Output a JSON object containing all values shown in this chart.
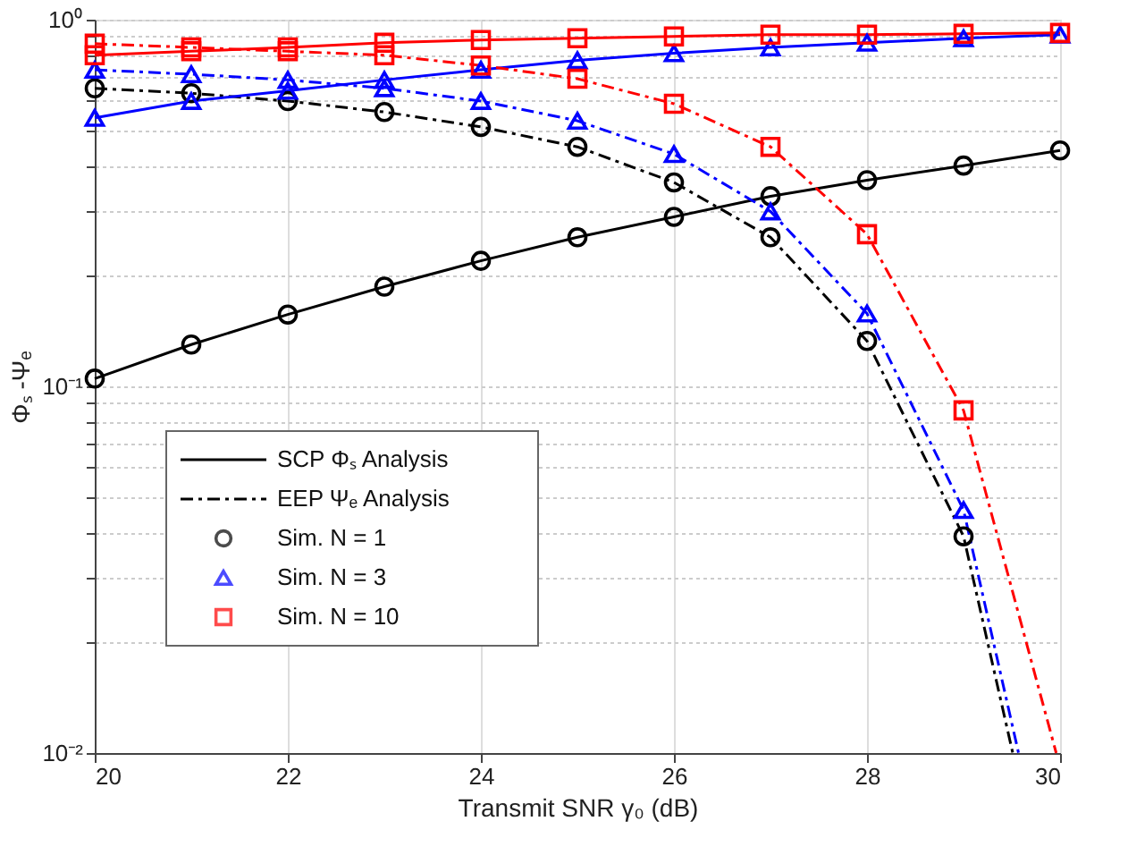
{
  "chart_data": {
    "type": "line",
    "xlabel": "Transmit SNR γ₀ (dB)",
    "ylabel": "Φₛ -Ψₑ",
    "log": "y",
    "grid": true,
    "legend": "bottom left",
    "xlim": [
      20,
      30
    ],
    "xticks": [
      20,
      22,
      24,
      26,
      28,
      30
    ],
    "ylim": [
      0.01,
      1
    ],
    "yticks": [
      {
        "value": 0.01,
        "label": "10⁻²"
      },
      {
        "value": 0.02,
        "label": null
      },
      {
        "value": 0.03,
        "label": null
      },
      {
        "value": 0.04,
        "label": null
      },
      {
        "value": 0.05,
        "label": null
      },
      {
        "value": 0.06,
        "label": null
      },
      {
        "value": 0.07,
        "label": null
      },
      {
        "value": 0.08,
        "label": null
      },
      {
        "value": 0.09,
        "label": null
      },
      {
        "value": 0.1,
        "label": "10⁻¹"
      },
      {
        "value": 0.2,
        "label": null
      },
      {
        "value": 0.3,
        "label": null
      },
      {
        "value": 0.4,
        "label": null
      },
      {
        "value": 0.5,
        "label": null
      },
      {
        "value": 0.6,
        "label": null
      },
      {
        "value": 0.7,
        "label": null
      },
      {
        "value": 0.8,
        "label": null
      },
      {
        "value": 0.9,
        "label": null
      },
      {
        "value": 1,
        "label": "10⁰"
      }
    ],
    "x": [
      20,
      21,
      22,
      23,
      24,
      25,
      26,
      27,
      28,
      29,
      30
    ],
    "series": [
      {
        "name": "SCP Φₛ Analysis",
        "line_style": "solid",
        "marker": "none",
        "color": "#000000",
        "values": [
          0.105,
          0.13,
          0.157,
          0.187,
          0.22,
          0.255,
          0.29,
          0.33,
          0.365,
          0.4,
          0.44
        ]
      },
      {
        "name": "EEP Ψₑ Analysis",
        "line_style": "dashed",
        "marker": "none",
        "color": "#000000",
        "x": [
          20,
          21,
          22,
          23,
          24,
          25,
          26,
          27,
          28,
          29,
          29.51
        ],
        "values": [
          0.65,
          0.63,
          0.6,
          0.56,
          0.51,
          0.45,
          0.36,
          0.255,
          0.133,
          0.039,
          0.01
        ]
      },
      {
        "line_style": "solid",
        "marker": "none",
        "color": "#0000ff",
        "values": [
          0.54,
          0.6,
          0.64,
          0.685,
          0.73,
          0.775,
          0.81,
          0.84,
          0.865,
          0.89,
          0.91
        ]
      },
      {
        "line_style": "dashed",
        "marker": "none",
        "color": "#0000ff",
        "x": [
          20,
          21,
          22,
          23,
          24,
          25,
          26,
          27,
          28,
          29,
          29.57
        ],
        "values": [
          0.73,
          0.71,
          0.685,
          0.65,
          0.6,
          0.53,
          0.43,
          0.3,
          0.158,
          0.046,
          0.01
        ]
      },
      {
        "line_style": "solid",
        "marker": "none",
        "color": "#ff0000",
        "values": [
          0.8,
          0.82,
          0.84,
          0.865,
          0.88,
          0.89,
          0.9,
          0.91,
          0.91,
          0.915,
          0.92
        ]
      },
      {
        "line_style": "dashed",
        "marker": "none",
        "color": "#ff0000",
        "x": [
          20,
          21,
          22,
          23,
          24,
          25,
          26,
          27,
          28,
          29,
          29.96
        ],
        "values": [
          0.86,
          0.84,
          0.82,
          0.8,
          0.75,
          0.69,
          0.59,
          0.45,
          0.26,
          0.086,
          0.01
        ]
      },
      {
        "name": "Sim.  N = 1",
        "type": "scatter",
        "marker": "circle",
        "color": "#000000",
        "x": [
          20,
          21,
          22,
          23,
          24,
          25,
          26,
          27,
          28,
          29,
          30,
          20,
          21,
          22,
          23,
          24,
          25,
          26,
          27,
          28,
          29
        ],
        "values": [
          0.105,
          0.13,
          0.157,
          0.187,
          0.22,
          0.255,
          0.29,
          0.33,
          0.365,
          0.4,
          0.44,
          0.65,
          0.63,
          0.6,
          0.56,
          0.51,
          0.45,
          0.36,
          0.255,
          0.133,
          0.039
        ]
      },
      {
        "name": "Sim.  N = 3",
        "type": "scatter",
        "marker": "triangle",
        "color": "#0000ff",
        "x": [
          20,
          21,
          22,
          23,
          24,
          25,
          26,
          27,
          28,
          29,
          30,
          20,
          21,
          22,
          23,
          24,
          25,
          26,
          27,
          28,
          29
        ],
        "values": [
          0.54,
          0.6,
          0.64,
          0.685,
          0.73,
          0.775,
          0.81,
          0.84,
          0.865,
          0.89,
          0.91,
          0.73,
          0.71,
          0.685,
          0.65,
          0.6,
          0.53,
          0.43,
          0.3,
          0.158,
          0.046
        ]
      },
      {
        "name": "Sim.  N = 10",
        "type": "scatter",
        "marker": "square",
        "color": "#ff0000",
        "x": [
          20,
          21,
          22,
          23,
          24,
          25,
          26,
          27,
          28,
          29,
          30,
          20,
          21,
          22,
          23,
          24,
          25,
          26,
          27,
          28,
          29
        ],
        "values": [
          0.8,
          0.82,
          0.84,
          0.865,
          0.88,
          0.89,
          0.9,
          0.91,
          0.91,
          0.915,
          0.92,
          0.86,
          0.84,
          0.82,
          0.8,
          0.75,
          0.69,
          0.59,
          0.45,
          0.26,
          0.086
        ]
      }
    ]
  }
}
